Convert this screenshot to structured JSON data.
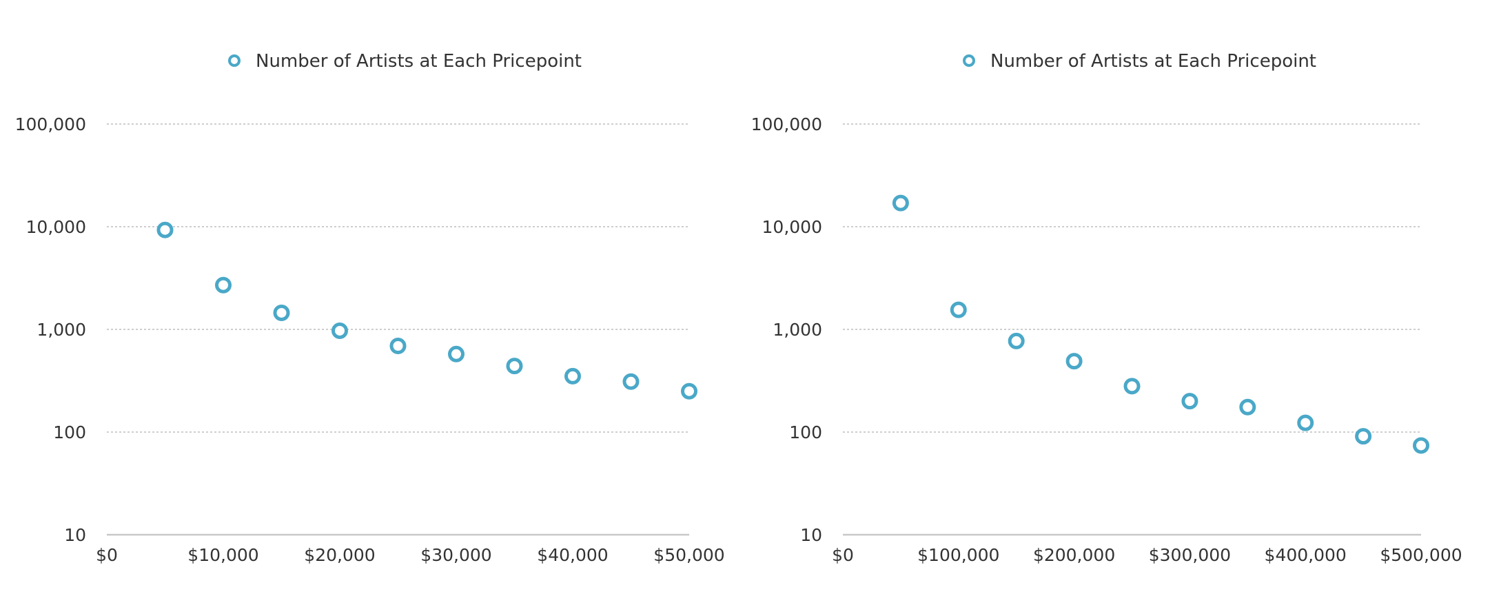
{
  "chart_data": [
    {
      "type": "scatter",
      "title": "",
      "xlabel": "",
      "ylabel": "",
      "yscale": "log",
      "ylim": [
        10,
        100000
      ],
      "xlim": [
        0,
        50000
      ],
      "grid": true,
      "legend_position": "top",
      "x_ticks": [
        0,
        10000,
        20000,
        30000,
        40000,
        50000
      ],
      "x_tick_labels": [
        "$0",
        "$10,000",
        "$20,000",
        "$30,000",
        "$40,000",
        "$50,000"
      ],
      "y_ticks": [
        10,
        100,
        1000,
        10000,
        100000
      ],
      "y_tick_labels": [
        "10",
        "100",
        "1,000",
        "10,000",
        "100,000"
      ],
      "series": [
        {
          "name": "Number of Artists at Each Pricepoint",
          "color": "#4aa8c8",
          "marker": "hollow-circle",
          "x": [
            5000,
            10000,
            15000,
            20000,
            25000,
            30000,
            35000,
            40000,
            45000,
            50000
          ],
          "y": [
            9300,
            2700,
            1450,
            970,
            690,
            575,
            440,
            350,
            310,
            250
          ]
        }
      ]
    },
    {
      "type": "scatter",
      "title": "",
      "xlabel": "",
      "ylabel": "",
      "yscale": "log",
      "ylim": [
        10,
        100000
      ],
      "xlim": [
        0,
        500000
      ],
      "grid": true,
      "legend_position": "top",
      "x_ticks": [
        0,
        100000,
        200000,
        300000,
        400000,
        500000
      ],
      "x_tick_labels": [
        "$0",
        "$100,000",
        "$200,000",
        "$300,000",
        "$400,000",
        "$500,000"
      ],
      "y_ticks": [
        10,
        100,
        1000,
        10000,
        100000
      ],
      "y_tick_labels": [
        "10",
        "100",
        "1,000",
        "10,000",
        "100,000"
      ],
      "series": [
        {
          "name": "Number of Artists at Each Pricepoint",
          "color": "#4aa8c8",
          "marker": "hollow-circle",
          "x": [
            50000,
            100000,
            150000,
            200000,
            250000,
            300000,
            350000,
            400000,
            450000,
            500000
          ],
          "y": [
            17000,
            1550,
            770,
            490,
            280,
            200,
            175,
            123,
            91,
            74
          ]
        }
      ]
    }
  ]
}
